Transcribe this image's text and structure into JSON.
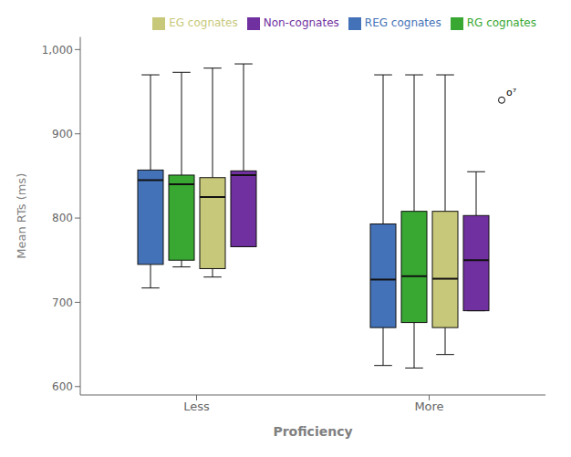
{
  "chart_data": {
    "type": "box",
    "xlabel": "Proficiency",
    "ylabel": "Mean RTs (ms)",
    "categories": [
      "Less",
      "More"
    ],
    "series": [
      {
        "name": "REG cognates",
        "color": "#4472b8",
        "values": [
          {
            "whislo": 717,
            "q1": 745,
            "med": 845,
            "q3": 857,
            "whishi": 970
          },
          {
            "whislo": 625,
            "q1": 670,
            "med": 727,
            "q3": 793,
            "whishi": 970
          }
        ]
      },
      {
        "name": "RG cognates",
        "color": "#38a832",
        "values": [
          {
            "whislo": 742,
            "q1": 750,
            "med": 840,
            "q3": 851,
            "whishi": 973
          },
          {
            "whislo": 622,
            "q1": 676,
            "med": 731,
            "q3": 808,
            "whishi": 970
          }
        ]
      },
      {
        "name": "EG cognates",
        "color": "#c8c87a",
        "values": [
          {
            "whislo": 730,
            "q1": 740,
            "med": 825,
            "q3": 848,
            "whishi": 978
          },
          {
            "whislo": 638,
            "q1": 670,
            "med": 728,
            "q3": 808,
            "whishi": 970
          }
        ]
      },
      {
        "name": "Non-cognates",
        "color": "#7030a0",
        "values": [
          {
            "whislo": 766,
            "q1": 766,
            "med": 851,
            "q3": 856,
            "whishi": 983
          },
          {
            "whislo": 690,
            "q1": 690,
            "med": 750,
            "q3": 803,
            "whishi": 855
          }
        ]
      }
    ],
    "outliers": [
      {
        "category": "More",
        "series": "Non-cognates",
        "value": 940,
        "label": "o⁷"
      }
    ],
    "ylim": [
      590,
      1015
    ],
    "yticks": [
      600,
      700,
      800,
      900,
      {
        "value": 1000,
        "label": "1,000"
      }
    ],
    "grid": false,
    "legend": "top-right"
  }
}
